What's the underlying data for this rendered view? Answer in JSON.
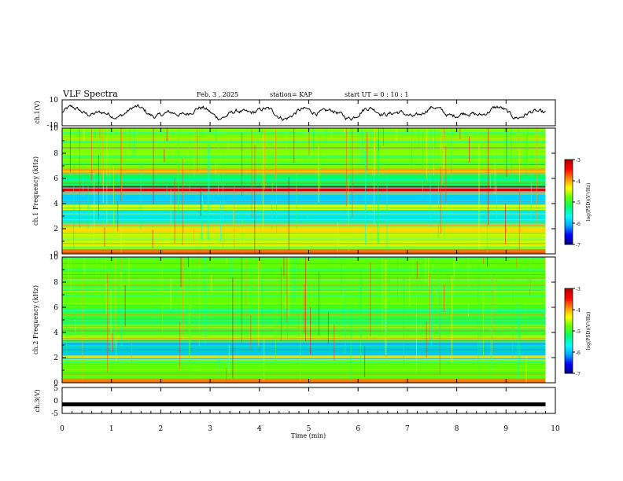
{
  "header": {
    "title": "VLF Spectra",
    "date": "Feb. 3 , 2025",
    "station": "station= KAP",
    "start_time": "start UT = 0 : 10 : 1"
  },
  "colors": {
    "waveform": "#000000",
    "colormap": [
      "#000080",
      "#0000ff",
      "#00aaff",
      "#00ffff",
      "#00ff66",
      "#66ff00",
      "#ffff00",
      "#ff8800",
      "#ff0000",
      "#b00000"
    ]
  },
  "chart_data": [
    {
      "type": "line",
      "panel": "ch1-waveform",
      "ylabel": "ch.1(V)",
      "ylim": [
        -10,
        10
      ],
      "yticks": [
        "10",
        "-10"
      ],
      "xlim": [
        0,
        10
      ],
      "description_values": {
        "x_min": 0.0,
        "x_max": 9.8,
        "mean": 0,
        "amplitude": 8
      }
    },
    {
      "type": "heatmap",
      "panel": "ch1-spectrogram",
      "ylabel": "ch.1 Frequency (kHz)",
      "ylim": [
        0,
        10
      ],
      "yticks": [
        "0",
        "2",
        "4",
        "6",
        "8",
        "10"
      ],
      "xlim": [
        0,
        10
      ],
      "data_end_min": 9.8,
      "base_level": -5.0,
      "bands": [
        {
          "f0": 0.0,
          "f1": 0.4,
          "level": -3.8
        },
        {
          "f0": 0.4,
          "f1": 1.6,
          "level": -4.5
        },
        {
          "f0": 1.6,
          "f1": 2.4,
          "level": -4.2
        },
        {
          "f0": 2.4,
          "f1": 3.5,
          "level": -5.8
        },
        {
          "f0": 3.5,
          "f1": 3.9,
          "level": -4.4
        },
        {
          "f0": 3.9,
          "f1": 5.0,
          "level": -5.9
        },
        {
          "f0": 5.0,
          "f1": 5.4,
          "level": -3.2
        },
        {
          "f0": 5.4,
          "f1": 6.3,
          "level": -5.2
        },
        {
          "f0": 6.3,
          "f1": 6.8,
          "level": -4.0
        },
        {
          "f0": 6.8,
          "f1": 10.0,
          "level": -4.7
        }
      ],
      "colorbar": {
        "label": "log(PSD)(V²/Hz)",
        "range": [
          -7,
          -3
        ],
        "ticks": [
          "-3",
          "-4",
          "-5",
          "-6",
          "-7"
        ]
      }
    },
    {
      "type": "heatmap",
      "panel": "ch2-spectrogram",
      "ylabel": "ch.2 Frequency (kHz)",
      "ylim": [
        0,
        10
      ],
      "yticks": [
        "0",
        "2",
        "4",
        "6",
        "8",
        "10"
      ],
      "xlim": [
        0,
        10
      ],
      "data_end_min": 9.8,
      "base_level": -5.0,
      "bands": [
        {
          "f0": 0.0,
          "f1": 0.3,
          "level": -3.8
        },
        {
          "f0": 0.3,
          "f1": 1.8,
          "level": -4.8
        },
        {
          "f0": 1.8,
          "f1": 2.2,
          "level": -4.2
        },
        {
          "f0": 2.2,
          "f1": 3.4,
          "level": -6.0
        },
        {
          "f0": 3.4,
          "f1": 3.8,
          "level": -4.6
        },
        {
          "f0": 3.8,
          "f1": 6.0,
          "level": -5.0
        },
        {
          "f0": 6.0,
          "f1": 10.0,
          "level": -4.8
        }
      ],
      "colorbar": {
        "label": "log(PSD)(V²/Hz)",
        "range": [
          -7,
          -3
        ],
        "ticks": [
          "-3",
          "-4",
          "-5",
          "-6",
          "-7"
        ]
      }
    },
    {
      "type": "line",
      "panel": "ch3-waveform",
      "ylabel": "ch.3(V)",
      "ylim": [
        -5,
        5
      ],
      "yticks": [
        "5",
        "0",
        "-5"
      ],
      "xlim": [
        0,
        10
      ],
      "description_values": {
        "x_min": 0.0,
        "x_max": 9.8,
        "mean": -1.5,
        "amplitude": 0.4
      }
    }
  ],
  "xaxis": {
    "label": "Time (min)",
    "ticks": [
      "0",
      "1",
      "2",
      "3",
      "4",
      "5",
      "6",
      "7",
      "8",
      "9",
      "10"
    ]
  }
}
